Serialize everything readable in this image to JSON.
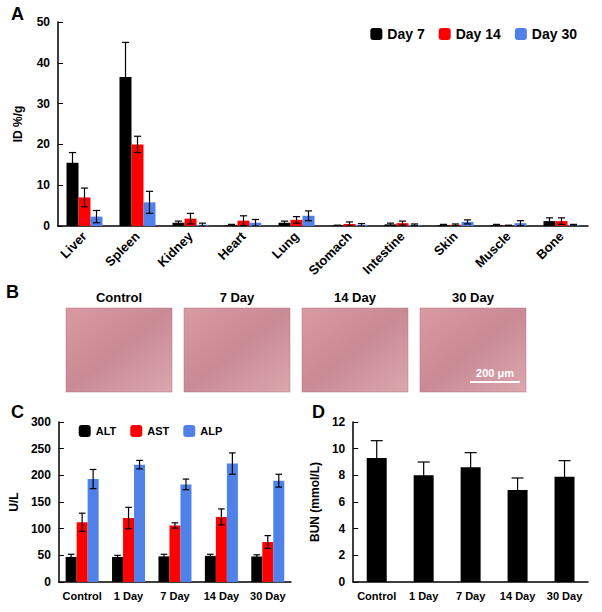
{
  "chart_data": [
    {
      "type": "bar",
      "title": "A",
      "y_label": "ID %/g",
      "categories": [
        "Liver",
        "Spleen",
        "Kidney",
        "Heart",
        "Lung",
        "Stomach",
        "Intestine",
        "Skin",
        "Muscle",
        "Bone"
      ],
      "series": [
        {
          "name": "Day 7",
          "color": "#000000",
          "values": [
            15.5,
            36.5,
            0.8,
            0.2,
            0.8,
            0.1,
            0.4,
            0.2,
            0.2,
            1.2
          ],
          "errors": [
            2.5,
            8.5,
            0.4,
            0.2,
            0.4,
            0.1,
            0.3,
            0.2,
            0.2,
            0.8
          ]
        },
        {
          "name": "Day 14",
          "color": "#ff0000",
          "values": [
            7.0,
            20.0,
            1.8,
            1.3,
            1.5,
            0.5,
            0.7,
            0.3,
            0.1,
            1.2
          ],
          "errors": [
            2.3,
            2.0,
            1.3,
            1.2,
            0.8,
            0.5,
            0.5,
            0.2,
            0.1,
            0.8
          ]
        },
        {
          "name": "Day 30",
          "color": "#4f81e8",
          "values": [
            2.3,
            5.8,
            0.3,
            0.8,
            2.5,
            0.3,
            0.3,
            1.0,
            0.7,
            0.2
          ],
          "errors": [
            1.5,
            2.7,
            0.4,
            0.8,
            1.2,
            0.3,
            0.2,
            0.5,
            0.6,
            0.2
          ]
        }
      ],
      "ylim": [
        0,
        50
      ],
      "yticks": [
        0,
        10,
        20,
        30,
        40,
        50
      ],
      "grid": false,
      "legend": "upper right"
    },
    {
      "type": "bar",
      "title": "C",
      "y_label": "U/L",
      "categories": [
        "Control",
        "1 Day",
        "7 Day",
        "14 Day",
        "30 Day"
      ],
      "series": [
        {
          "name": "ALT",
          "color": "#000000",
          "values": [
            47,
            47,
            48,
            49,
            48
          ],
          "errors": [
            5,
            3,
            4,
            3,
            3
          ]
        },
        {
          "name": "AST",
          "color": "#ff0000",
          "values": [
            112,
            120,
            106,
            122,
            75
          ],
          "errors": [
            17,
            20,
            5,
            15,
            12
          ]
        },
        {
          "name": "ALP",
          "color": "#4f81e8",
          "values": [
            193,
            220,
            183,
            222,
            190
          ],
          "errors": [
            18,
            8,
            10,
            20,
            12
          ]
        }
      ],
      "ylim": [
        0,
        300
      ],
      "yticks": [
        0,
        50,
        100,
        150,
        200,
        250,
        300
      ],
      "grid": false,
      "legend": "top"
    },
    {
      "type": "bar",
      "title": "D",
      "y_label": "BUN (mmol/L)",
      "categories": [
        "Control",
        "1 Day",
        "7 Day",
        "14 Day",
        "30 Day"
      ],
      "values": [
        9.3,
        8.0,
        8.6,
        6.9,
        7.9
      ],
      "errors": [
        1.3,
        1.0,
        1.1,
        0.9,
        1.2
      ],
      "color": "#000000",
      "ylim": [
        0,
        12
      ],
      "yticks": [
        0,
        2,
        4,
        6,
        8,
        10,
        12
      ],
      "grid": false
    }
  ],
  "micrographs": {
    "title": "B",
    "labels": [
      "Control",
      "7 Day",
      "14 Day",
      "30 Day"
    ],
    "scale_bar": "200 μm"
  }
}
